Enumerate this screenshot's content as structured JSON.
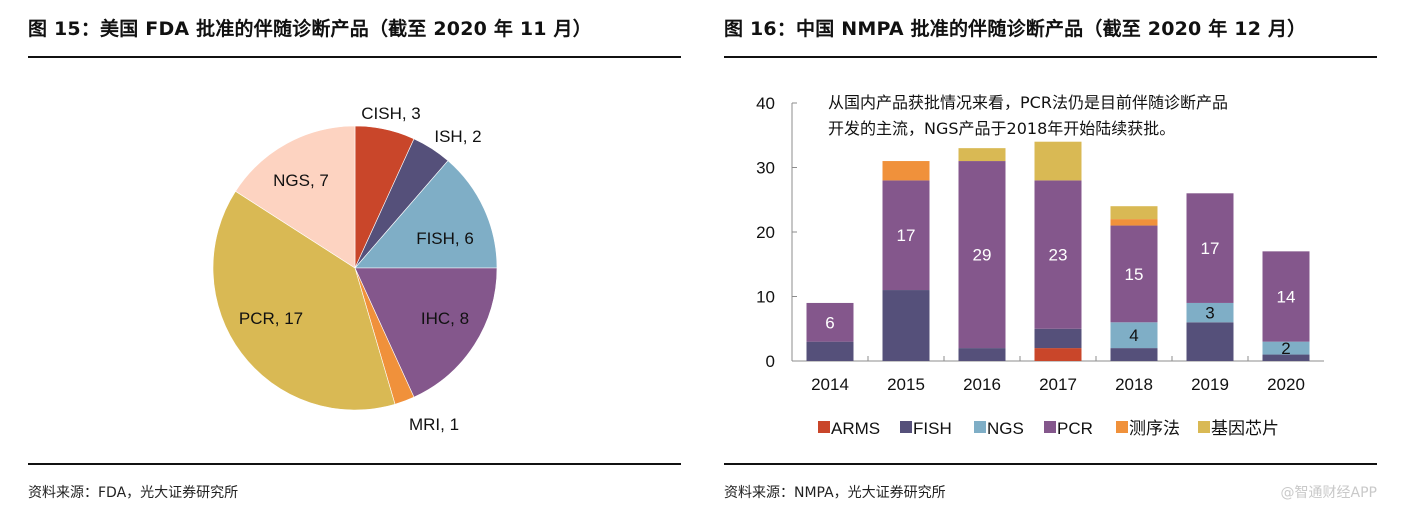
{
  "left": {
    "title": "图 15：美国 FDA 批准的伴随诊断产品（截至 2020 年 11 月）",
    "source": "资料来源：FDA，光大证券研究所"
  },
  "right": {
    "title": "图 16：中国 NMPA 批准的伴随诊断产品（截至 2020 年 12 月）",
    "source": "资料来源：NMPA，光大证券研究所",
    "watermark": "@智通财经APP",
    "annotation_lines": [
      "从国内产品获批情况来看，PCR法仍是目前伴随诊断产品",
      "开发的主流，NGS产品于2018年开始陆续获批。"
    ]
  },
  "chart_data": [
    {
      "type": "pie",
      "title": "美国 FDA 批准的伴随诊断产品（截至 2020 年 11 月）",
      "start": "12 o'clock, clockwise",
      "slices": [
        {
          "label": "CISH",
          "value": 3,
          "color": "#C9462A"
        },
        {
          "label": "ISH",
          "value": 2,
          "color": "#55507A"
        },
        {
          "label": "FISH",
          "value": 6,
          "color": "#7FAEC6"
        },
        {
          "label": "IHC",
          "value": 8,
          "color": "#84578C"
        },
        {
          "label": "MRI",
          "value": 1,
          "color": "#F0913B"
        },
        {
          "label": "PCR",
          "value": 17,
          "color": "#D9B954"
        },
        {
          "label": "NGS",
          "value": 7,
          "color": "#FDD3C1"
        }
      ],
      "data_labels": [
        "CISH, 3",
        "ISH, 2",
        "FISH, 6",
        "IHC, 8",
        "MRI, 1",
        "PCR, 17",
        "NGS, 7"
      ]
    },
    {
      "type": "bar",
      "stacked": true,
      "title": "中国 NMPA 批准的伴随诊断产品（截至 2020 年 12 月）",
      "categories": [
        "2014",
        "2015",
        "2016",
        "2017",
        "2018",
        "2019",
        "2020"
      ],
      "ylim": [
        0,
        40
      ],
      "yticks": [
        0,
        10,
        20,
        30,
        40
      ],
      "grid": false,
      "legend": "bottom",
      "series": [
        {
          "name": "ARMS",
          "color": "#C9462A",
          "values": [
            0,
            0,
            0,
            2,
            0,
            0,
            0
          ]
        },
        {
          "name": "FISH",
          "color": "#55507A",
          "values": [
            3,
            11,
            2,
            3,
            2,
            6,
            1
          ]
        },
        {
          "name": "NGS",
          "color": "#7FAEC6",
          "values": [
            0,
            0,
            0,
            0,
            4,
            3,
            2
          ],
          "labels": [
            null,
            null,
            null,
            null,
            "4",
            "3",
            "2"
          ]
        },
        {
          "name": "PCR",
          "color": "#84578C",
          "values": [
            6,
            17,
            29,
            23,
            15,
            17,
            14
          ],
          "labels": [
            "6",
            "17",
            "29",
            "23",
            "15",
            "17",
            "14"
          ]
        },
        {
          "name": "测序法",
          "color": "#F0913B",
          "values": [
            0,
            3,
            0,
            0,
            1,
            0,
            0
          ]
        },
        {
          "name": "基因芯片",
          "color": "#D9B954",
          "values": [
            0,
            0,
            2,
            6,
            2,
            0,
            0
          ]
        }
      ]
    }
  ]
}
